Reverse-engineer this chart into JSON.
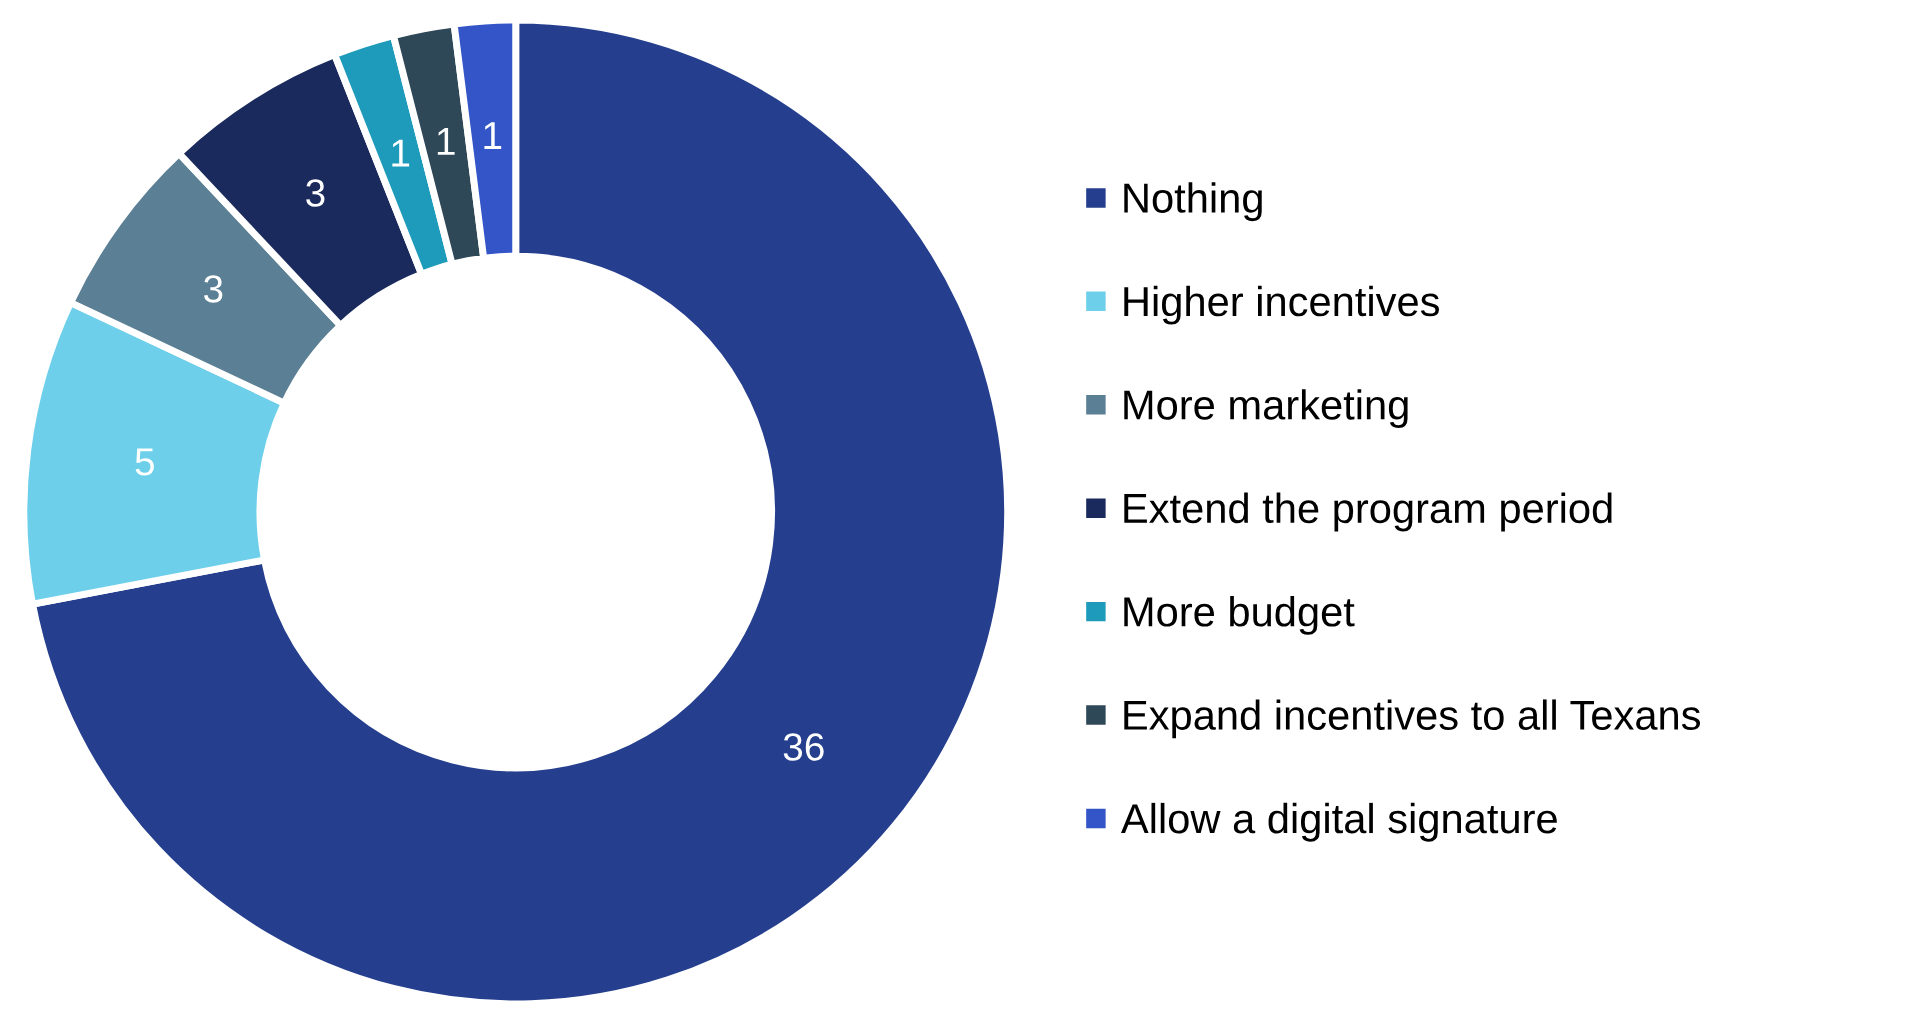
{
  "chart_data": {
    "type": "donut",
    "categories": [
      "Nothing",
      "Higher incentives",
      "More marketing",
      "Extend the program period",
      "More budget",
      "Expand incentives to all Texans",
      "Allow a digital signature"
    ],
    "values": [
      36,
      5,
      3,
      3,
      1,
      1,
      1
    ],
    "colors": [
      "#253f8e",
      "#6dcfea",
      "#5b7f94",
      "#1a2a5c",
      "#1e9bbb",
      "#2f4858",
      "#3355c8"
    ],
    "data_labels": true,
    "legend": "right"
  }
}
